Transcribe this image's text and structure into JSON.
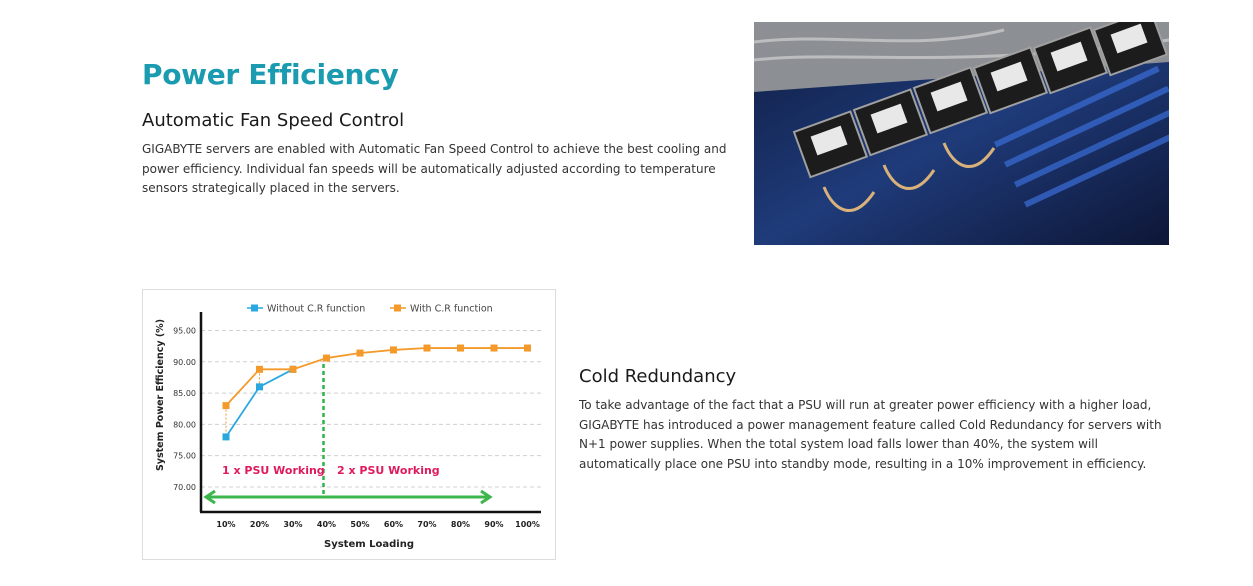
{
  "section": {
    "title": "Power Efficiency"
  },
  "fan_speed": {
    "title": "Automatic Fan Speed Control",
    "description": "GIGABYTE servers are enabled with Automatic Fan Speed Control to achieve the best cooling and power efficiency. Individual fan speeds will be automatically adjusted according to temperature sensors strategically placed in the servers."
  },
  "cold_redundancy": {
    "title": "Cold Redundancy",
    "description": "To take advantage of the fact that a PSU will run at greater power efficiency with a higher load, GIGABYTE has introduced a power management feature called Cold Redundancy for servers with N+1 power supplies. When the total system load falls lower than 40%, the system will automatically place one PSU into standby mode, resulting in a 10% improvement in efficiency."
  },
  "photo": {
    "subject": "server-fans-photo"
  },
  "chart_data": {
    "type": "line",
    "xlabel": "System Loading",
    "ylabel": "System Power Efficiency (%)",
    "categories": [
      "10%",
      "20%",
      "30%",
      "40%",
      "50%",
      "60%",
      "70%",
      "80%",
      "90%",
      "100%"
    ],
    "yticks": [
      "95.00",
      "90.00",
      "85.00",
      "80.00",
      "75.00",
      "70.00"
    ],
    "ylim": [
      66,
      97
    ],
    "grid": true,
    "legend_position": "top",
    "series": [
      {
        "name": "Without C.R function",
        "color": "#29a8e0",
        "values": [
          78,
          86,
          88.8,
          null,
          null,
          null,
          null,
          null,
          null,
          null
        ]
      },
      {
        "name": "With C.R function",
        "color": "#f39a2b",
        "values": [
          83,
          88.8,
          88.8,
          90.6,
          91.4,
          91.9,
          92.2,
          92.2,
          92.2,
          92.2
        ]
      }
    ],
    "annotations": [
      {
        "text": "1 x PSU Working",
        "color": "#e0195e"
      },
      {
        "text": "2 x PSU Working",
        "color": "#e0195e"
      }
    ],
    "threshold_category": "40%",
    "threshold_color": "#2eb34a",
    "arrow_color": "#3cb54a"
  }
}
